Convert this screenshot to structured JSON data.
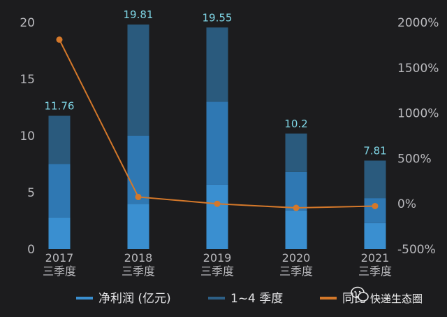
{
  "chart_data": {
    "type": "bar",
    "categories": [
      {
        "year": "2017",
        "period": "三季度"
      },
      {
        "year": "2018",
        "period": "三季度"
      },
      {
        "year": "2019",
        "period": "三季度"
      },
      {
        "year": "2020",
        "period": "三季度"
      },
      {
        "year": "2021",
        "period": "三季度"
      }
    ],
    "stacked_segments": [
      [
        2.8,
        4.7,
        4.26
      ],
      [
        4.0,
        6.0,
        9.81
      ],
      [
        5.7,
        7.3,
        6.55
      ],
      [
        3.4,
        3.4,
        3.4
      ],
      [
        2.3,
        2.2,
        3.31
      ]
    ],
    "totals": [
      11.76,
      19.81,
      19.55,
      10.2,
      7.81
    ],
    "total_labels": [
      "11.76",
      "19.81",
      "19.55",
      "10.2",
      "7.81"
    ],
    "yoy_percent": [
      1810,
      75,
      0,
      -45,
      -25
    ],
    "left_axis": {
      "range": [
        0,
        20
      ],
      "ticks": [
        "0",
        "5",
        "10",
        "15",
        "20"
      ]
    },
    "right_axis": {
      "range": [
        -500,
        2000
      ],
      "ticks": [
        "-500%",
        "0%",
        "500%",
        "1000%",
        "1500%",
        "2000%"
      ]
    },
    "legend": {
      "placement": "bottom",
      "items": [
        {
          "label": "净利润 (亿元)",
          "color": "#3a8fd0"
        },
        {
          "label": "1~4 季度",
          "color": "#2d5f86"
        },
        {
          "label": "同比",
          "color": "#d4782a"
        }
      ]
    },
    "colors": {
      "segments": [
        "#3a8fd0",
        "#2f78b3",
        "#2a5a7d"
      ],
      "line": "#d4782a",
      "label": "#7fd6e6"
    }
  },
  "watermark": {
    "text": "快递生态圈",
    "icon": "wechat-icon"
  }
}
